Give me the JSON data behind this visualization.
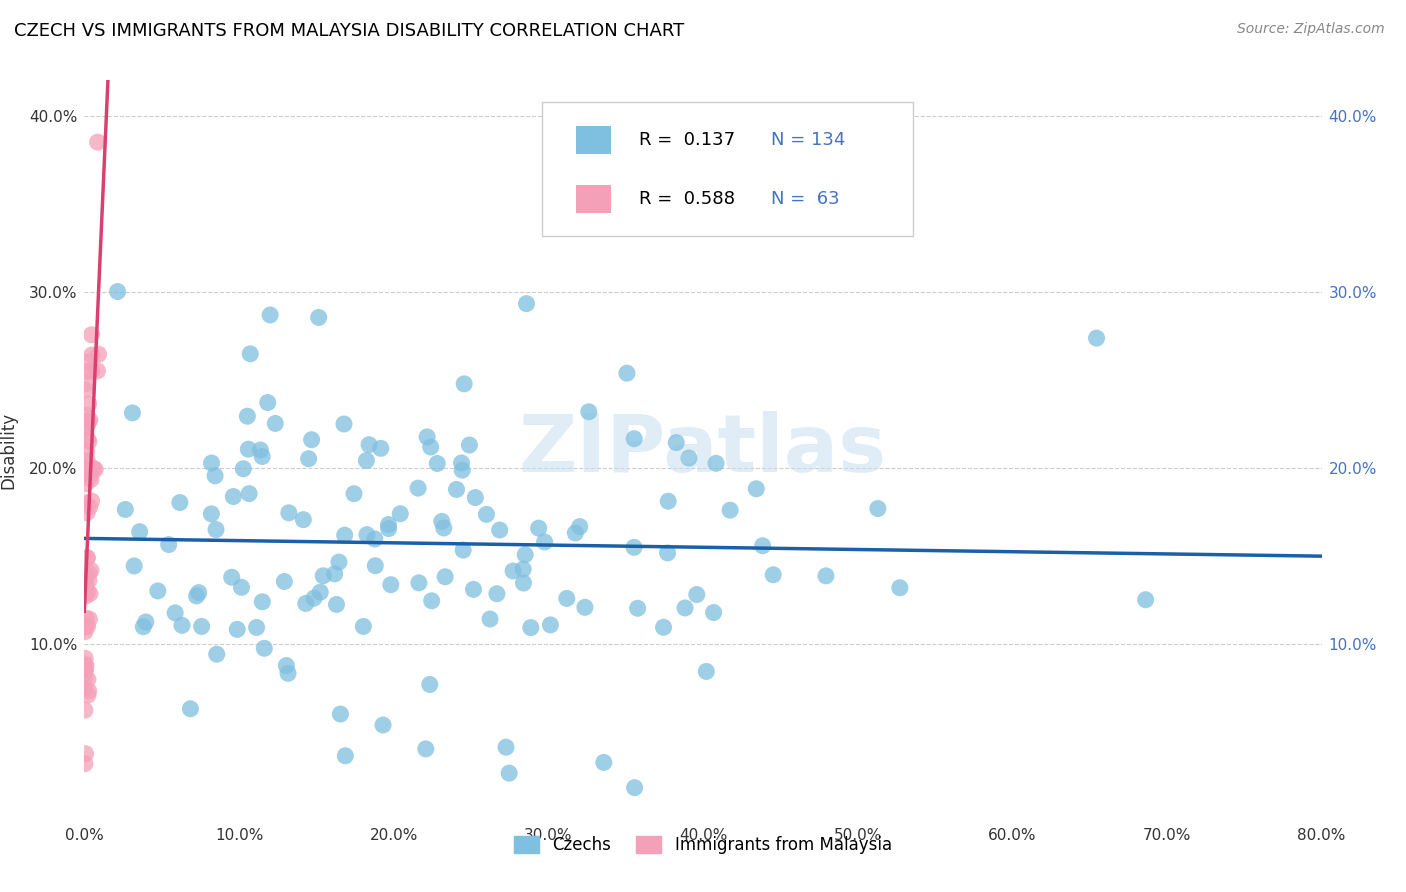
{
  "title": "CZECH VS IMMIGRANTS FROM MALAYSIA DISABILITY CORRELATION CHART",
  "source": "Source: ZipAtlas.com",
  "ylabel": "Disability",
  "watermark": "ZIPatlas",
  "xlim": [
    0.0,
    0.8
  ],
  "ylim": [
    0.0,
    0.42
  ],
  "xticks": [
    0.0,
    0.1,
    0.2,
    0.3,
    0.4,
    0.5,
    0.6,
    0.7,
    0.8
  ],
  "xtick_labels": [
    "0.0%",
    "10.0%",
    "20.0%",
    "30.0%",
    "40.0%",
    "50.0%",
    "60.0%",
    "70.0%",
    "80.0%"
  ],
  "yticks": [
    0.0,
    0.1,
    0.2,
    0.3,
    0.4
  ],
  "ytick_labels": [
    "",
    "10.0%",
    "20.0%",
    "30.0%",
    "40.0%"
  ],
  "blue_color": "#7fbfdf",
  "pink_color": "#f4a0b8",
  "blue_line_color": "#1a5fa8",
  "pink_line_color": "#d94070",
  "pink_dash_color": "#e8a0b8",
  "R_blue": 0.137,
  "N_blue": 134,
  "R_pink": 0.588,
  "N_pink": 63,
  "legend_labels": [
    "Czechs",
    "Immigrants from Malaysia"
  ],
  "background_color": "#ffffff",
  "grid_color": "#cccccc",
  "title_fontsize": 13,
  "seed_blue": 42,
  "seed_pink": 99
}
